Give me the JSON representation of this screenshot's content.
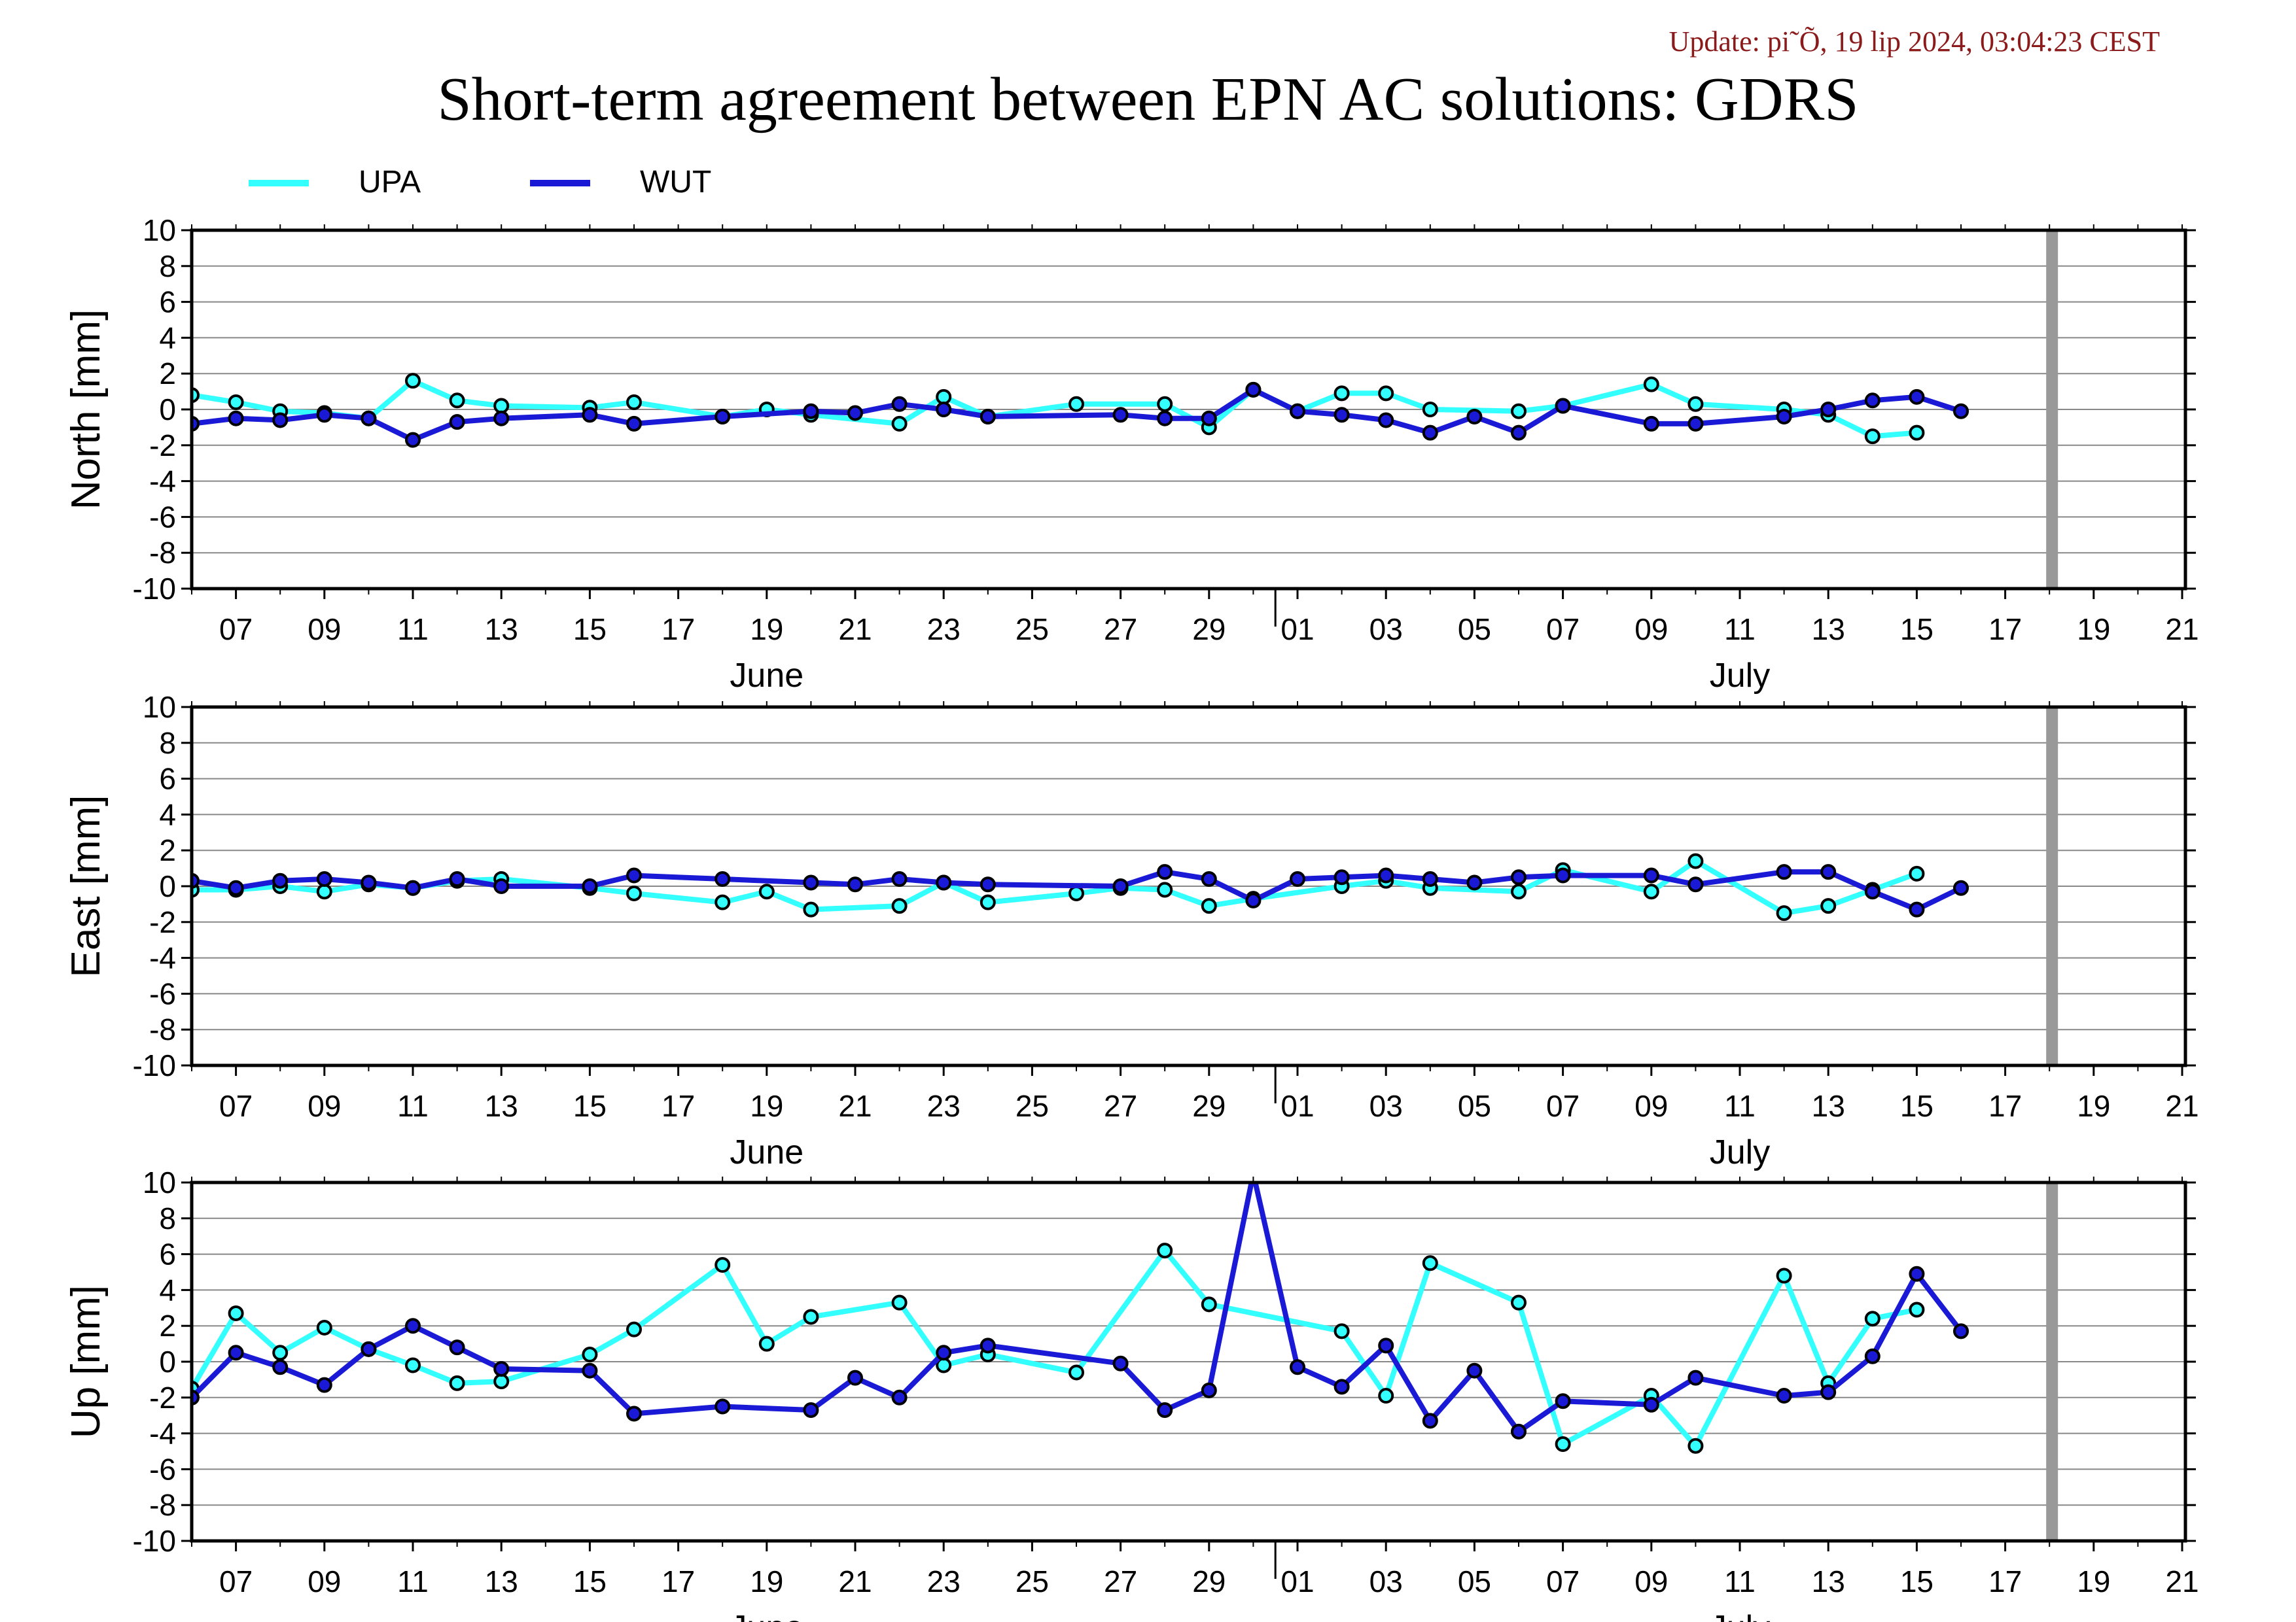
{
  "update_text": "Update: pi˜Õ, 19 lip 2024, 03:04:23 CEST",
  "title": "Short-term agreement between EPN AC solutions: GDRS",
  "colors": {
    "UPA": "#33ffff",
    "WUT": "#1a1ad6",
    "vline": "#999999",
    "grid": "#888888"
  },
  "chart_data": {
    "type": "line",
    "title": "Short-term agreement between EPN AC solutions: GDRS",
    "xlabel": "",
    "x_range": [
      "2024-06-06",
      "2024-07-21"
    ],
    "x_tick_labels": [
      "07",
      "09",
      "11",
      "13",
      "15",
      "17",
      "19",
      "21",
      "23",
      "25",
      "27",
      "29",
      "01",
      "03",
      "05",
      "07",
      "09",
      "11",
      "13",
      "15",
      "17",
      "19",
      "21"
    ],
    "month_labels": [
      "June",
      "July"
    ],
    "vertical_marker": "2024-07-18",
    "legend": {
      "position": "top-left",
      "entries": [
        "UPA",
        "WUT"
      ]
    },
    "panels": [
      {
        "ylabel": "North [mm]",
        "ylim": [
          -10,
          10
        ],
        "yticks": [
          10,
          8,
          6,
          4,
          2,
          0,
          -2,
          -4,
          -6,
          -8,
          -10
        ],
        "series": [
          {
            "name": "UPA",
            "points": [
              [
                "2024-06-06",
                0.8
              ],
              [
                "2024-06-07",
                0.4
              ],
              [
                "2024-06-08",
                -0.1
              ],
              [
                "2024-06-09",
                -0.2
              ],
              [
                "2024-06-10",
                -0.5
              ],
              [
                "2024-06-11",
                1.6
              ],
              [
                "2024-06-12",
                0.5
              ],
              [
                "2024-06-13",
                0.2
              ],
              [
                "2024-06-15",
                0.1
              ],
              [
                "2024-06-16",
                0.4
              ],
              [
                "2024-06-18",
                -0.4
              ],
              [
                "2024-06-19",
                0.0
              ],
              [
                "2024-06-20",
                -0.3
              ],
              [
                "2024-06-22",
                -0.8
              ],
              [
                "2024-06-23",
                0.7
              ],
              [
                "2024-06-24",
                -0.4
              ],
              [
                "2024-06-26",
                0.3
              ],
              [
                "2024-06-28",
                0.3
              ],
              [
                "2024-06-29",
                -1.0
              ],
              [
                "2024-06-30",
                1.1
              ],
              [
                "2024-07-01",
                -0.1
              ],
              [
                "2024-07-02",
                0.9
              ],
              [
                "2024-07-03",
                0.9
              ],
              [
                "2024-07-04",
                0.0
              ],
              [
                "2024-07-06",
                -0.1
              ],
              [
                "2024-07-07",
                0.2
              ],
              [
                "2024-07-09",
                1.4
              ],
              [
                "2024-07-10",
                0.3
              ],
              [
                "2024-07-12",
                0.0
              ],
              [
                "2024-07-13",
                -0.3
              ],
              [
                "2024-07-14",
                -1.5
              ],
              [
                "2024-07-15",
                -1.3
              ]
            ]
          },
          {
            "name": "WUT",
            "points": [
              [
                "2024-06-06",
                -0.8
              ],
              [
                "2024-06-07",
                -0.5
              ],
              [
                "2024-06-08",
                -0.6
              ],
              [
                "2024-06-09",
                -0.3
              ],
              [
                "2024-06-10",
                -0.5
              ],
              [
                "2024-06-11",
                -1.7
              ],
              [
                "2024-06-12",
                -0.7
              ],
              [
                "2024-06-13",
                -0.5
              ],
              [
                "2024-06-15",
                -0.3
              ],
              [
                "2024-06-16",
                -0.8
              ],
              [
                "2024-06-18",
                -0.4
              ],
              [
                "2024-06-20",
                -0.1
              ],
              [
                "2024-06-21",
                -0.2
              ],
              [
                "2024-06-22",
                0.3
              ],
              [
                "2024-06-23",
                0.0
              ],
              [
                "2024-06-24",
                -0.4
              ],
              [
                "2024-06-27",
                -0.3
              ],
              [
                "2024-06-28",
                -0.5
              ],
              [
                "2024-06-29",
                -0.5
              ],
              [
                "2024-06-30",
                1.1
              ],
              [
                "2024-07-01",
                -0.1
              ],
              [
                "2024-07-02",
                -0.3
              ],
              [
                "2024-07-03",
                -0.6
              ],
              [
                "2024-07-04",
                -1.3
              ],
              [
                "2024-07-05",
                -0.4
              ],
              [
                "2024-07-06",
                -1.3
              ],
              [
                "2024-07-07",
                0.2
              ],
              [
                "2024-07-09",
                -0.8
              ],
              [
                "2024-07-10",
                -0.8
              ],
              [
                "2024-07-12",
                -0.4
              ],
              [
                "2024-07-13",
                0.0
              ],
              [
                "2024-07-14",
                0.5
              ],
              [
                "2024-07-15",
                0.7
              ],
              [
                "2024-07-16",
                -0.1
              ]
            ]
          }
        ]
      },
      {
        "ylabel": "East [mm]",
        "ylim": [
          -10,
          10
        ],
        "yticks": [
          10,
          8,
          6,
          4,
          2,
          0,
          -2,
          -4,
          -6,
          -8,
          -10
        ],
        "series": [
          {
            "name": "UPA",
            "points": [
              [
                "2024-06-06",
                -0.2
              ],
              [
                "2024-06-07",
                -0.2
              ],
              [
                "2024-06-08",
                0.0
              ],
              [
                "2024-06-09",
                -0.3
              ],
              [
                "2024-06-10",
                0.1
              ],
              [
                "2024-06-11",
                -0.1
              ],
              [
                "2024-06-12",
                0.3
              ],
              [
                "2024-06-13",
                0.4
              ],
              [
                "2024-06-15",
                -0.1
              ],
              [
                "2024-06-16",
                -0.4
              ],
              [
                "2024-06-18",
                -0.9
              ],
              [
                "2024-06-19",
                -0.3
              ],
              [
                "2024-06-20",
                -1.3
              ],
              [
                "2024-06-22",
                -1.1
              ],
              [
                "2024-06-23",
                0.2
              ],
              [
                "2024-06-24",
                -0.9
              ],
              [
                "2024-06-26",
                -0.4
              ],
              [
                "2024-06-27",
                -0.1
              ],
              [
                "2024-06-28",
                -0.2
              ],
              [
                "2024-06-29",
                -1.1
              ],
              [
                "2024-06-30",
                -0.7
              ],
              [
                "2024-07-02",
                0.0
              ],
              [
                "2024-07-03",
                0.3
              ],
              [
                "2024-07-04",
                -0.1
              ],
              [
                "2024-07-06",
                -0.3
              ],
              [
                "2024-07-07",
                0.9
              ],
              [
                "2024-07-09",
                -0.3
              ],
              [
                "2024-07-10",
                1.4
              ],
              [
                "2024-07-12",
                -1.5
              ],
              [
                "2024-07-13",
                -1.1
              ],
              [
                "2024-07-14",
                -0.2
              ],
              [
                "2024-07-15",
                0.7
              ]
            ]
          },
          {
            "name": "WUT",
            "points": [
              [
                "2024-06-06",
                0.3
              ],
              [
                "2024-06-07",
                -0.1
              ],
              [
                "2024-06-08",
                0.3
              ],
              [
                "2024-06-09",
                0.4
              ],
              [
                "2024-06-10",
                0.2
              ],
              [
                "2024-06-11",
                -0.1
              ],
              [
                "2024-06-12",
                0.4
              ],
              [
                "2024-06-13",
                0.0
              ],
              [
                "2024-06-15",
                0.0
              ],
              [
                "2024-06-16",
                0.6
              ],
              [
                "2024-06-18",
                0.4
              ],
              [
                "2024-06-20",
                0.2
              ],
              [
                "2024-06-21",
                0.1
              ],
              [
                "2024-06-22",
                0.4
              ],
              [
                "2024-06-23",
                0.2
              ],
              [
                "2024-06-24",
                0.1
              ],
              [
                "2024-06-27",
                0.0
              ],
              [
                "2024-06-28",
                0.8
              ],
              [
                "2024-06-29",
                0.4
              ],
              [
                "2024-06-30",
                -0.8
              ],
              [
                "2024-07-01",
                0.4
              ],
              [
                "2024-07-02",
                0.5
              ],
              [
                "2024-07-03",
                0.6
              ],
              [
                "2024-07-04",
                0.4
              ],
              [
                "2024-07-05",
                0.2
              ],
              [
                "2024-07-06",
                0.5
              ],
              [
                "2024-07-07",
                0.6
              ],
              [
                "2024-07-09",
                0.6
              ],
              [
                "2024-07-10",
                0.1
              ],
              [
                "2024-07-12",
                0.8
              ],
              [
                "2024-07-13",
                0.8
              ],
              [
                "2024-07-14",
                -0.3
              ],
              [
                "2024-07-15",
                -1.3
              ],
              [
                "2024-07-16",
                -0.1
              ]
            ]
          }
        ]
      },
      {
        "ylabel": "Up [mm]",
        "ylim": [
          -10,
          10
        ],
        "yticks": [
          10,
          8,
          6,
          4,
          2,
          0,
          -2,
          -4,
          -6,
          -8,
          -10
        ],
        "series": [
          {
            "name": "UPA",
            "points": [
              [
                "2024-06-06",
                -1.5
              ],
              [
                "2024-06-07",
                2.7
              ],
              [
                "2024-06-08",
                0.5
              ],
              [
                "2024-06-09",
                1.9
              ],
              [
                "2024-06-10",
                0.7
              ],
              [
                "2024-06-11",
                -0.2
              ],
              [
                "2024-06-12",
                -1.2
              ],
              [
                "2024-06-13",
                -1.1
              ],
              [
                "2024-06-15",
                0.4
              ],
              [
                "2024-06-16",
                1.8
              ],
              [
                "2024-06-18",
                5.4
              ],
              [
                "2024-06-19",
                1.0
              ],
              [
                "2024-06-20",
                2.5
              ],
              [
                "2024-06-22",
                3.3
              ],
              [
                "2024-06-23",
                -0.2
              ],
              [
                "2024-06-24",
                0.4
              ],
              [
                "2024-06-26",
                -0.6
              ],
              [
                "2024-06-28",
                6.2
              ],
              [
                "2024-06-29",
                3.2
              ],
              [
                "2024-07-02",
                1.7
              ],
              [
                "2024-07-03",
                -1.9
              ],
              [
                "2024-07-04",
                5.5
              ],
              [
                "2024-07-06",
                3.3
              ],
              [
                "2024-07-07",
                -4.6
              ],
              [
                "2024-07-09",
                -1.9
              ],
              [
                "2024-07-10",
                -4.7
              ],
              [
                "2024-07-12",
                4.8
              ],
              [
                "2024-07-13",
                -1.2
              ],
              [
                "2024-07-14",
                2.4
              ],
              [
                "2024-07-15",
                2.9
              ]
            ]
          },
          {
            "name": "WUT",
            "points": [
              [
                "2024-06-06",
                -2.0
              ],
              [
                "2024-06-07",
                0.5
              ],
              [
                "2024-06-08",
                -0.3
              ],
              [
                "2024-06-09",
                -1.3
              ],
              [
                "2024-06-10",
                0.7
              ],
              [
                "2024-06-11",
                2.0
              ],
              [
                "2024-06-12",
                0.8
              ],
              [
                "2024-06-13",
                -0.4
              ],
              [
                "2024-06-15",
                -0.5
              ],
              [
                "2024-06-16",
                -2.9
              ],
              [
                "2024-06-18",
                -2.5
              ],
              [
                "2024-06-20",
                -2.7
              ],
              [
                "2024-06-21",
                -0.9
              ],
              [
                "2024-06-22",
                -2.0
              ],
              [
                "2024-06-23",
                0.5
              ],
              [
                "2024-06-24",
                0.9
              ],
              [
                "2024-06-27",
                -0.1
              ],
              [
                "2024-06-28",
                -2.7
              ],
              [
                "2024-06-29",
                -1.6
              ],
              [
                "2024-06-30",
                10.5
              ],
              [
                "2024-07-01",
                -0.3
              ],
              [
                "2024-07-02",
                -1.4
              ],
              [
                "2024-07-03",
                0.9
              ],
              [
                "2024-07-04",
                -3.3
              ],
              [
                "2024-07-05",
                -0.5
              ],
              [
                "2024-07-06",
                -3.9
              ],
              [
                "2024-07-07",
                -2.2
              ],
              [
                "2024-07-09",
                -2.4
              ],
              [
                "2024-07-10",
                -0.9
              ],
              [
                "2024-07-12",
                -1.9
              ],
              [
                "2024-07-13",
                -1.7
              ],
              [
                "2024-07-14",
                0.3
              ],
              [
                "2024-07-15",
                4.9
              ],
              [
                "2024-07-16",
                1.7
              ]
            ]
          }
        ]
      }
    ]
  }
}
